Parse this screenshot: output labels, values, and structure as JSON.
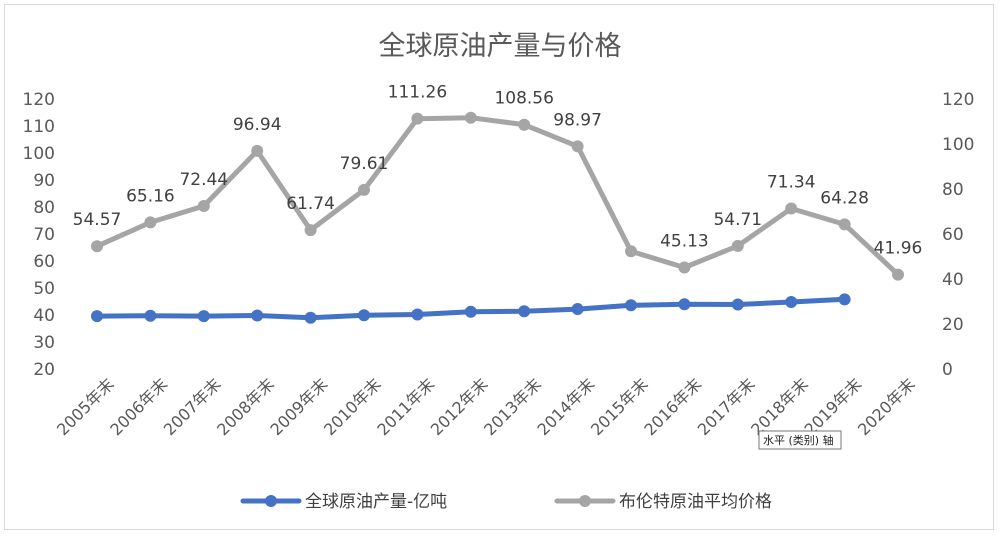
{
  "chart_data": {
    "type": "line",
    "title": "全球原油产量与价格",
    "categories": [
      "2005年末",
      "2006年末",
      "2007年末",
      "2008年末",
      "2009年末",
      "2010年末",
      "2011年末",
      "2012年末",
      "2013年末",
      "2014年末",
      "2015年末",
      "2016年末",
      "2017年末",
      "2018年末",
      "2019年末",
      "2020年末"
    ],
    "series": [
      {
        "name": "全球原油产量-亿吨",
        "axis": "left",
        "color": "#4472C4",
        "values": [
          39.6,
          39.7,
          39.6,
          39.8,
          39.0,
          39.9,
          40.2,
          41.2,
          41.4,
          42.2,
          43.6,
          44.0,
          43.9,
          44.8,
          45.8,
          null
        ]
      },
      {
        "name": "布伦特原油平均价格",
        "axis": "right",
        "color": "#A5A5A5",
        "values": [
          54.57,
          65.16,
          72.44,
          96.94,
          61.74,
          79.61,
          111.26,
          111.67,
          108.56,
          98.97,
          52.32,
          45.13,
          54.71,
          71.34,
          64.28,
          41.96
        ],
        "data_labels": [
          "54.57",
          "65.16",
          "72.44",
          "96.94",
          "61.74",
          "79.61",
          "111.26",
          "",
          "108.56",
          "98.97",
          "",
          "45.13",
          "54.71",
          "71.34",
          "64.28",
          "41.96"
        ]
      }
    ],
    "y_left": {
      "min": 20,
      "max": 120,
      "step": 10,
      "ticks": [
        "120",
        "110",
        "100",
        "90",
        "80",
        "70",
        "60",
        "50",
        "40",
        "30",
        "20"
      ]
    },
    "y_right": {
      "min": 0,
      "max": 120,
      "step": 20,
      "ticks": [
        "120",
        "100",
        "80",
        "60",
        "40",
        "20",
        "0"
      ]
    },
    "grid": false,
    "legend_position": "bottom",
    "tooltip": "水平 (类别) 轴"
  }
}
